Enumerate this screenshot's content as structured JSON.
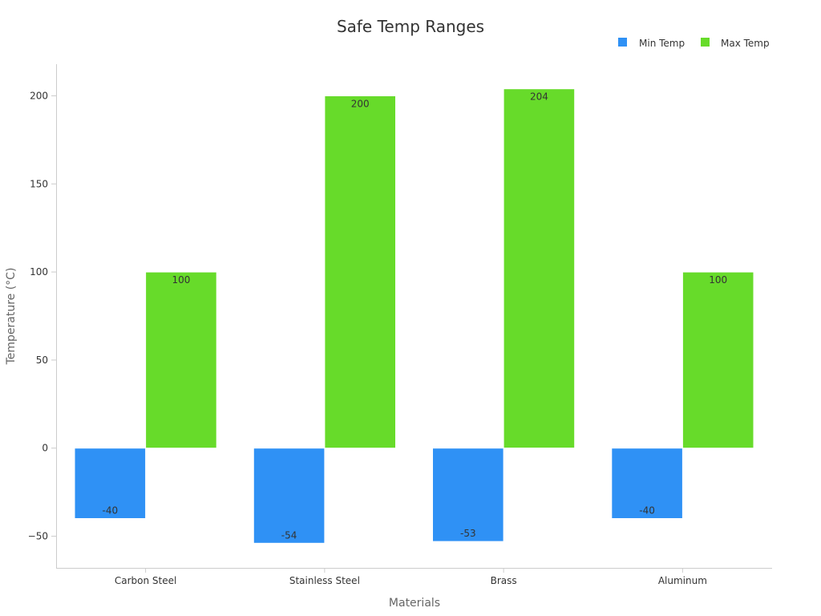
{
  "chart_data": {
    "type": "bar",
    "title": "Safe Temp Ranges",
    "xlabel": "Materials",
    "ylabel": "Temperature (°C)",
    "categories": [
      "Carbon Steel",
      "Stainless Steel",
      "Brass",
      "Aluminum"
    ],
    "series": [
      {
        "name": "Min Temp",
        "color": "#2f91f5",
        "values": [
          -40,
          -54,
          -53,
          -40
        ]
      },
      {
        "name": "Max Temp",
        "color": "#67db2a",
        "values": [
          100,
          200,
          204,
          100
        ]
      }
    ],
    "ylim": [
      -68,
      218
    ],
    "yticks": [
      -50,
      0,
      50,
      100,
      150,
      200
    ],
    "ytick_labels": [
      "−50",
      "0",
      "50",
      "100",
      "150",
      "200"
    ],
    "legend_position": "top-right",
    "grid": false
  }
}
